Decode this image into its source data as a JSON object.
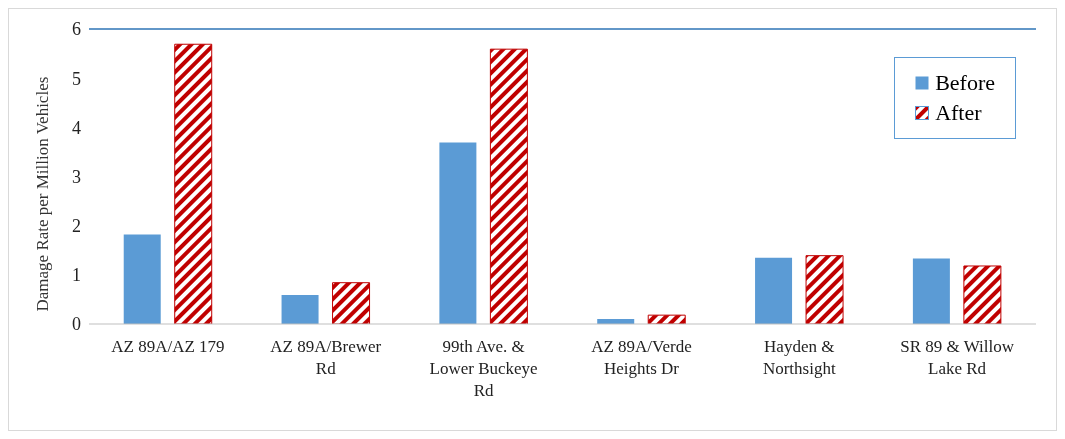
{
  "chart_data": {
    "type": "bar",
    "ylabel": "Damage Rate per Million Vehicles",
    "categories": [
      "AZ 89A/AZ 179",
      "AZ 89A/Brewer Rd",
      "99th Ave. & Lower Buckeye Rd",
      "AZ 89A/Verde Heights Dr",
      "Hayden & Northsight",
      "SR 89 & Willow Lake Rd"
    ],
    "series": [
      {
        "name": "Before",
        "color": "#5b9bd5",
        "values": [
          1.82,
          0.59,
          3.69,
          0.1,
          1.35,
          1.33
        ]
      },
      {
        "name": "After",
        "color": "#c00000",
        "values": [
          5.69,
          0.84,
          5.59,
          0.18,
          1.39,
          1.18
        ]
      }
    ],
    "ylim": [
      0,
      6
    ],
    "yticks": [
      0,
      1,
      2,
      3,
      4,
      5,
      6
    ],
    "grid": false,
    "legend": "top right"
  }
}
